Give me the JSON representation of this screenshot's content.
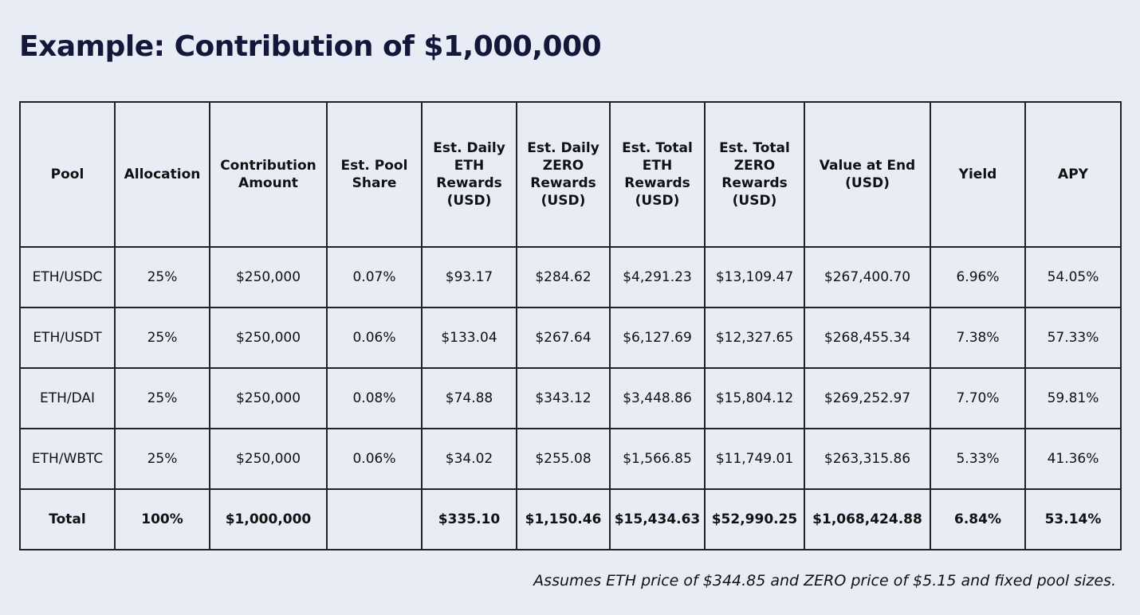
{
  "title": "Example: Contribution of $1,000,000",
  "table": {
    "headers": [
      "Pool",
      "Allocation",
      "Contribution Amount",
      "Est. Pool Share",
      "Est. Daily ETH Rewards (USD)",
      "Est. Daily ZERO Rewards (USD)",
      "Est. Total ETH Rewards (USD)",
      "Est. Total ZERO Rewards (USD)",
      "Value at End (USD)",
      "Yield",
      "APY"
    ],
    "rows": [
      [
        "ETH/USDC",
        "25%",
        "$250,000",
        "0.07%",
        "$93.17",
        "$284.62",
        "$4,291.23",
        "$13,109.47",
        "$267,400.70",
        "6.96%",
        "54.05%"
      ],
      [
        "ETH/USDT",
        "25%",
        "$250,000",
        "0.06%",
        "$133.04",
        "$267.64",
        "$6,127.69",
        "$12,327.65",
        "$268,455.34",
        "7.38%",
        "57.33%"
      ],
      [
        "ETH/DAI",
        "25%",
        "$250,000",
        "0.08%",
        "$74.88",
        "$343.12",
        "$3,448.86",
        "$15,804.12",
        "$269,252.97",
        "7.70%",
        "59.81%"
      ],
      [
        "ETH/WBTC",
        "25%",
        "$250,000",
        "0.06%",
        "$34.02",
        "$255.08",
        "$1,566.85",
        "$11,749.01",
        "$263,315.86",
        "5.33%",
        "41.36%"
      ]
    ],
    "total": [
      "Total",
      "100%",
      "$1,000,000",
      "",
      "$335.10",
      "$1,150.46",
      "$15,434.63",
      "$52,990.25",
      "$1,068,424.88",
      "6.84%",
      "53.14%"
    ]
  },
  "footnote": "Assumes ETH price of $344.85 and ZERO price of $5.15 and fixed pool sizes."
}
